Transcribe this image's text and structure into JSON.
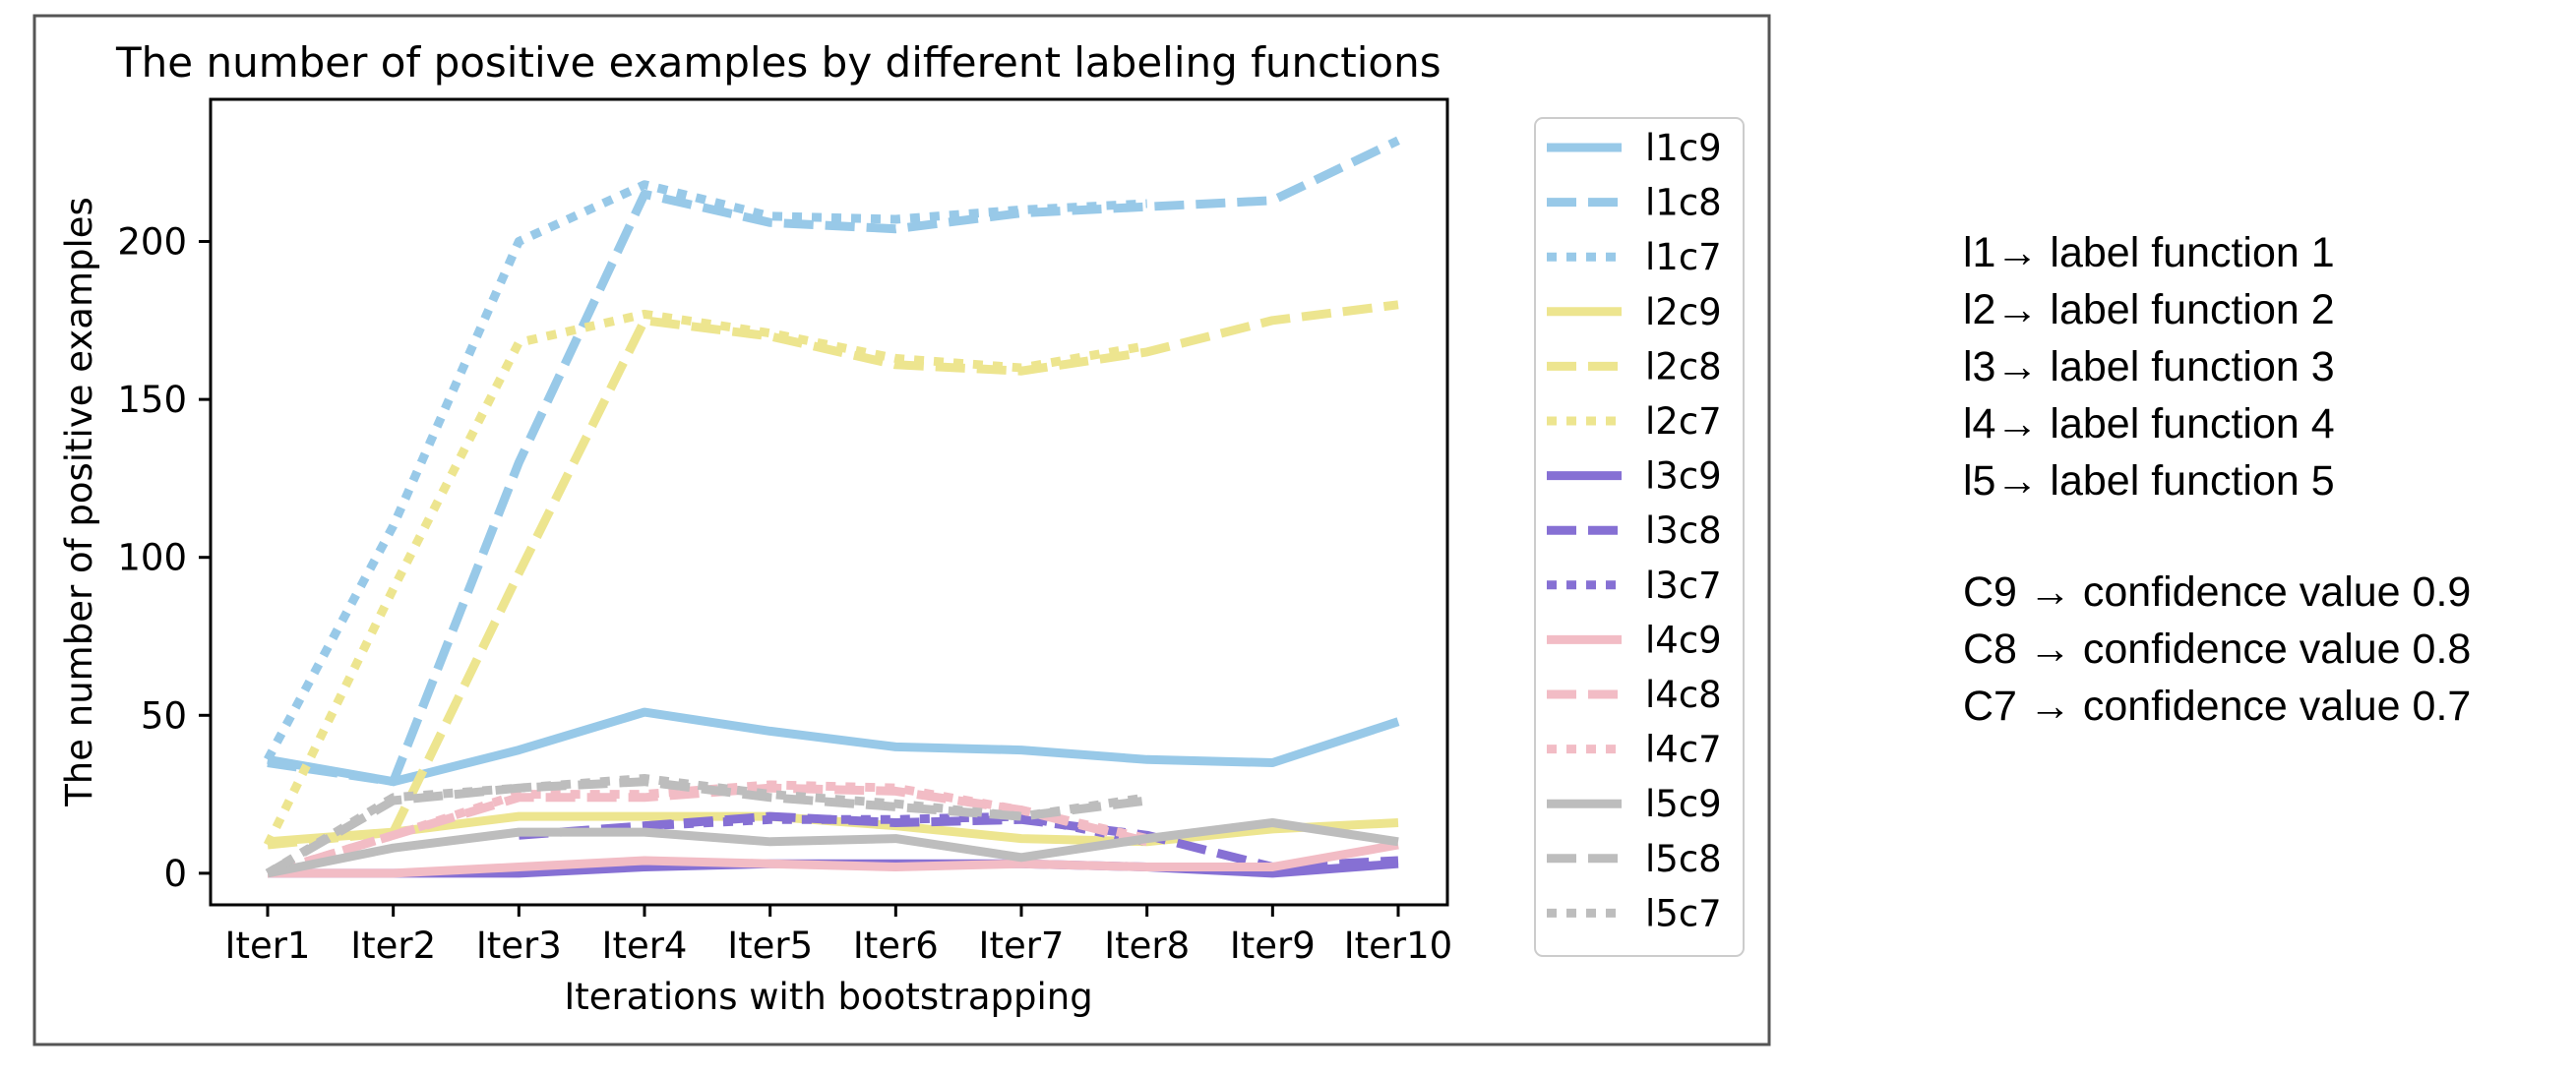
{
  "chart_data": {
    "type": "line",
    "title": "The number of positive examples by different labeling functions",
    "xlabel": "Iterations with bootstrapping",
    "ylabel": "The number of positive examples",
    "categories": [
      "Iter1",
      "Iter2",
      "Iter3",
      "Iter4",
      "Iter5",
      "Iter6",
      "Iter7",
      "Iter8",
      "Iter9",
      "Iter10"
    ],
    "ylim": [
      -10,
      245
    ],
    "yticks": [
      0,
      50,
      100,
      150,
      200
    ],
    "grid": false,
    "legend_position": "right",
    "series": [
      {
        "name": "l1c9",
        "color": "#98c9e8",
        "style": "solid",
        "values": [
          36,
          29,
          39,
          51,
          45,
          40,
          39,
          36,
          35,
          48
        ]
      },
      {
        "name": "l1c8",
        "color": "#98c9e8",
        "style": "dashed",
        "values": [
          35,
          29,
          130,
          215,
          206,
          204,
          209,
          211,
          213,
          232
        ]
      },
      {
        "name": "l1c7",
        "color": "#98c9e8",
        "style": "dotted",
        "values": [
          36,
          110,
          200,
          218,
          208,
          207,
          210,
          212,
          null,
          null
        ]
      },
      {
        "name": "l2c9",
        "color": "#ede58f",
        "style": "solid",
        "values": [
          10,
          13,
          18,
          18,
          18,
          15,
          11,
          10,
          14,
          16
        ]
      },
      {
        "name": "l2c8",
        "color": "#ede58f",
        "style": "dashed",
        "values": [
          9,
          13,
          95,
          175,
          170,
          161,
          159,
          165,
          175,
          180
        ]
      },
      {
        "name": "l2c7",
        "color": "#ede58f",
        "style": "dotted",
        "values": [
          9,
          90,
          168,
          177,
          171,
          163,
          160,
          167,
          null,
          null
        ]
      },
      {
        "name": "l3c9",
        "color": "#8670d4",
        "style": "solid",
        "values": [
          0,
          0,
          0,
          2,
          3,
          3,
          3,
          2,
          0,
          3
        ]
      },
      {
        "name": "l3c8",
        "color": "#8670d4",
        "style": "dashed",
        "values": [
          null,
          null,
          12,
          15,
          18,
          16,
          17,
          12,
          2,
          4
        ]
      },
      {
        "name": "l3c7",
        "color": "#8670d4",
        "style": "dotted",
        "values": [
          null,
          null,
          null,
          15,
          17,
          17,
          18,
          10,
          null,
          null
        ]
      },
      {
        "name": "l4c9",
        "color": "#f2bcc5",
        "style": "solid",
        "values": [
          0,
          0,
          2,
          4,
          3,
          2,
          3,
          2,
          2,
          9
        ]
      },
      {
        "name": "l4c8",
        "color": "#f2bcc5",
        "style": "dashed",
        "values": [
          0,
          12,
          24,
          24,
          27,
          26,
          20,
          10,
          null,
          null
        ]
      },
      {
        "name": "l4c7",
        "color": "#f2bcc5",
        "style": "dotted",
        "values": [
          0,
          12,
          25,
          25,
          28,
          27,
          20,
          11,
          null,
          null
        ]
      },
      {
        "name": "l5c9",
        "color": "#bdbdbd",
        "style": "solid",
        "values": [
          0,
          8,
          13,
          13,
          10,
          11,
          5,
          11,
          16,
          10
        ]
      },
      {
        "name": "l5c8",
        "color": "#bdbdbd",
        "style": "dashed",
        "values": [
          0,
          23,
          27,
          29,
          24,
          21,
          18,
          23,
          null,
          null
        ]
      },
      {
        "name": "l5c7",
        "color": "#bdbdbd",
        "style": "dotted",
        "values": [
          0,
          24,
          27,
          30,
          25,
          22,
          18,
          24,
          null,
          null
        ]
      }
    ]
  },
  "notes": {
    "label_functions": [
      "l1→ label function 1",
      "l2→ label function 2",
      "l3→ label function 3",
      "l4→ label function 4",
      "l5→ label function 5"
    ],
    "confidences": [
      "C9 → confidence value 0.9",
      "C8 → confidence value 0.8",
      "C7 → confidence value 0.7"
    ]
  }
}
